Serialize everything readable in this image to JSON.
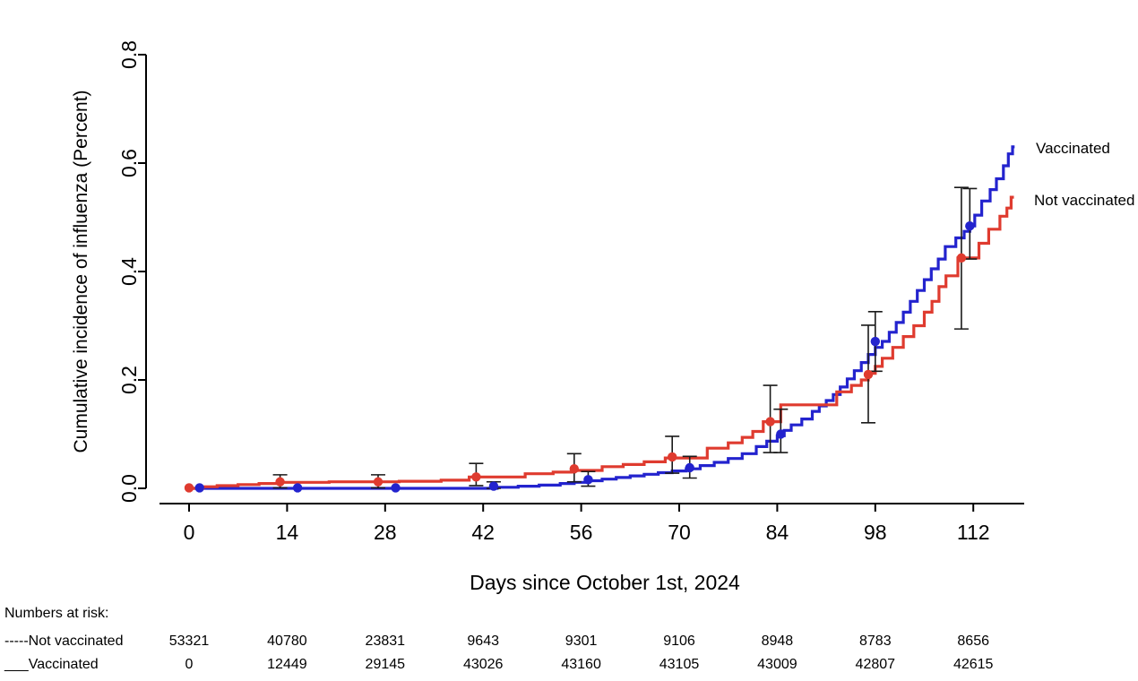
{
  "chart_data": {
    "type": "line",
    "subtype": "cumulative-incidence-step-curves",
    "title": "",
    "xlabel": "Days since October 1st, 2024",
    "ylabel": "Cumulative incidence of influenza (Percent)",
    "xlim": [
      0,
      119
    ],
    "ylim": [
      0,
      0.8
    ],
    "x_ticks": [
      0,
      14,
      28,
      42,
      56,
      70,
      84,
      98,
      112
    ],
    "y_ticks": [
      "0.0",
      "0.2",
      "0.4",
      "0.6",
      "0.8"
    ],
    "grid": false,
    "legend_position": "right-outside",
    "axis_color": "#000000",
    "error_bar_color": "#1a1a1a",
    "series": [
      {
        "name": "Vaccinated",
        "color": "#2323CE",
        "line_style": "solid",
        "steps": [
          [
            0,
            0
          ],
          [
            44,
            0.002
          ],
          [
            47,
            0.004
          ],
          [
            50,
            0.006
          ],
          [
            53,
            0.009
          ],
          [
            55,
            0.011
          ],
          [
            57,
            0.014
          ],
          [
            59,
            0.017
          ],
          [
            61,
            0.02
          ],
          [
            63,
            0.023
          ],
          [
            65,
            0.026
          ],
          [
            67,
            0.029
          ],
          [
            69,
            0.032
          ],
          [
            71,
            0.036
          ],
          [
            73,
            0.042
          ],
          [
            75,
            0.048
          ],
          [
            77,
            0.055
          ],
          [
            79,
            0.064
          ],
          [
            81,
            0.077
          ],
          [
            82.5,
            0.087
          ],
          [
            84,
            0.097
          ],
          [
            85,
            0.107
          ],
          [
            86,
            0.117
          ],
          [
            87.5,
            0.128
          ],
          [
            89,
            0.142
          ],
          [
            90,
            0.152
          ],
          [
            91,
            0.162
          ],
          [
            92,
            0.173
          ],
          [
            93,
            0.187
          ],
          [
            94,
            0.202
          ],
          [
            95,
            0.217
          ],
          [
            96,
            0.232
          ],
          [
            97,
            0.247
          ],
          [
            98,
            0.26
          ],
          [
            99,
            0.271
          ],
          [
            100,
            0.288
          ],
          [
            101,
            0.306
          ],
          [
            102,
            0.325
          ],
          [
            103,
            0.345
          ],
          [
            104,
            0.365
          ],
          [
            105,
            0.385
          ],
          [
            106,
            0.405
          ],
          [
            107,
            0.423
          ],
          [
            108,
            0.446
          ],
          [
            109.5,
            0.462
          ],
          [
            110.7,
            0.474
          ],
          [
            111.5,
            0.484
          ],
          [
            112.2,
            0.504
          ],
          [
            113.2,
            0.53
          ],
          [
            114.4,
            0.551
          ],
          [
            115.3,
            0.571
          ],
          [
            116.3,
            0.595
          ],
          [
            117,
            0.617
          ],
          [
            117.6,
            0.63
          ],
          [
            117.9,
            0.63
          ]
        ],
        "markers": [
          {
            "day": 1.5,
            "value": 0.001,
            "lo": 0.0,
            "hi": 0.003
          },
          {
            "day": 15.5,
            "value": 0.001,
            "lo": 0.0,
            "hi": 0.003
          },
          {
            "day": 29.5,
            "value": 0.001,
            "lo": 0.0,
            "hi": 0.003
          },
          {
            "day": 43.5,
            "value": 0.004,
            "lo": 0.0,
            "hi": 0.012
          },
          {
            "day": 57,
            "value": 0.016,
            "lo": 0.004,
            "hi": 0.031
          },
          {
            "day": 71.5,
            "value": 0.038,
            "lo": 0.019,
            "hi": 0.059
          },
          {
            "day": 84.5,
            "value": 0.1,
            "lo": 0.066,
            "hi": 0.146
          },
          {
            "day": 98,
            "value": 0.271,
            "lo": 0.216,
            "hi": 0.326
          },
          {
            "day": 111.5,
            "value": 0.484,
            "lo": 0.423,
            "hi": 0.553
          }
        ]
      },
      {
        "name": "Not vaccinated",
        "color": "#DF3B2F",
        "line_style": "solid",
        "steps": [
          [
            0,
            0
          ],
          [
            2,
            0.003
          ],
          [
            4,
            0.005
          ],
          [
            7,
            0.007
          ],
          [
            10,
            0.009
          ],
          [
            13,
            0.011
          ],
          [
            20,
            0.012
          ],
          [
            30,
            0.013
          ],
          [
            36,
            0.015
          ],
          [
            40,
            0.021
          ],
          [
            48,
            0.027
          ],
          [
            52,
            0.03
          ],
          [
            55,
            0.033
          ],
          [
            59,
            0.04
          ],
          [
            62,
            0.044
          ],
          [
            65,
            0.049
          ],
          [
            68,
            0.056
          ],
          [
            74,
            0.074
          ],
          [
            77,
            0.084
          ],
          [
            79,
            0.094
          ],
          [
            80.5,
            0.105
          ],
          [
            82,
            0.123
          ],
          [
            84.5,
            0.154
          ],
          [
            92.5,
            0.178
          ],
          [
            94.6,
            0.19
          ],
          [
            96,
            0.2
          ],
          [
            97,
            0.212
          ],
          [
            98,
            0.225
          ],
          [
            99,
            0.24
          ],
          [
            100.5,
            0.26
          ],
          [
            102,
            0.28
          ],
          [
            103.5,
            0.3
          ],
          [
            105,
            0.325
          ],
          [
            106.1,
            0.345
          ],
          [
            107.1,
            0.372
          ],
          [
            108.1,
            0.392
          ],
          [
            109.8,
            0.425
          ],
          [
            112.8,
            0.452
          ],
          [
            114.2,
            0.478
          ],
          [
            115.8,
            0.502
          ],
          [
            116.8,
            0.517
          ],
          [
            117.4,
            0.537
          ],
          [
            117.8,
            0.537
          ]
        ],
        "markers": [
          {
            "day": 0,
            "value": 0.001,
            "lo": 0.0,
            "hi": 0.004
          },
          {
            "day": 13,
            "value": 0.012,
            "lo": 0.001,
            "hi": 0.025
          },
          {
            "day": 27,
            "value": 0.012,
            "lo": 0.001,
            "hi": 0.025
          },
          {
            "day": 41,
            "value": 0.021,
            "lo": 0.005,
            "hi": 0.046
          },
          {
            "day": 55,
            "value": 0.036,
            "lo": 0.012,
            "hi": 0.064
          },
          {
            "day": 69,
            "value": 0.058,
            "lo": 0.028,
            "hi": 0.096
          },
          {
            "day": 83,
            "value": 0.123,
            "lo": 0.066,
            "hi": 0.19
          },
          {
            "day": 97,
            "value": 0.21,
            "lo": 0.121,
            "hi": 0.301
          },
          {
            "day": 110.3,
            "value": 0.425,
            "lo": 0.294,
            "hi": 0.555
          }
        ]
      }
    ],
    "numbers_at_risk": {
      "title": "Numbers at risk:",
      "days": [
        0,
        14,
        28,
        42,
        56,
        70,
        84,
        98,
        112
      ],
      "rows": [
        {
          "prefix": "-----",
          "name": "Not vaccinated",
          "color": "#DF3B2F",
          "values": [
            "53321",
            "40780",
            "23831",
            "9643",
            "9301",
            "9106",
            "8948",
            "8783",
            "8656"
          ]
        },
        {
          "prefix": "___",
          "name": "Vaccinated",
          "color": "#2323CE",
          "values": [
            "0",
            "12449",
            "29145",
            "43026",
            "43160",
            "43105",
            "43009",
            "42807",
            "42615"
          ]
        }
      ]
    }
  }
}
